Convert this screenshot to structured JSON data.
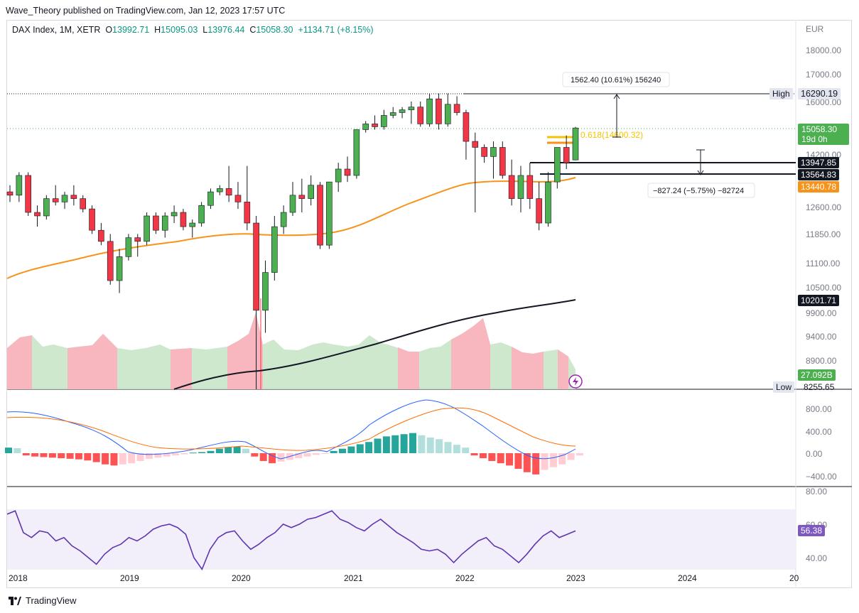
{
  "header": {
    "publisher": "Wave_Theory published on TradingView.com, Jan 12, 2023 17:57 UTC"
  },
  "legend": {
    "symbol": "DAX Index, 1M, XETR",
    "open_label": "O",
    "open": "13992.71",
    "high_label": "H",
    "high": "15095.03",
    "low_label": "L",
    "low": "13976.44",
    "close_label": "C",
    "close": "15058.30",
    "change": "+1134.71 (+8.15%)"
  },
  "price_axis": {
    "currency": "EUR",
    "ticks": [
      "18000.00",
      "17000.00",
      "16000.00",
      "14200.00",
      "12600.00",
      "11850.00",
      "11100.00",
      "10500.00",
      "9900.00",
      "9400.00",
      "8900.00"
    ]
  },
  "labels": {
    "high_label": "High",
    "high_value": "16290.19",
    "low_label": "Low",
    "low_value": "8255.65",
    "last_price": "15058.30",
    "countdown": "19d 0h",
    "level1": "13947.85",
    "level2": "13564.83",
    "ma_value": "13440.78",
    "ma200_value": "10201.71",
    "volume_value": "27.092B",
    "fib_label": "0.618(14600.32)",
    "measure_up": "1562.40 (10.61%) 156240",
    "measure_down": "−827.24 (−5.75%) −82724"
  },
  "macd_axis": {
    "ticks": [
      "800.00",
      "400.00",
      "0.00",
      "−400.00"
    ]
  },
  "rsi_axis": {
    "ticks": [
      "80.00",
      "60.00",
      "40.00"
    ],
    "value": "56.38"
  },
  "time_axis": {
    "ticks": [
      "2018",
      "2019",
      "2020",
      "2021",
      "2022",
      "2023",
      "2024",
      "20"
    ]
  },
  "brand": {
    "name": "TradingView"
  },
  "colors": {
    "up": "#4caf50",
    "down": "#f23645",
    "ma": "#f7931a",
    "ma200": "#131722",
    "macd": "#2962ff",
    "signal": "#ff6d00",
    "rsi": "#7e57c2",
    "accent": "#f7931a"
  },
  "chart_data": {
    "type": "candlestick",
    "price_candles": [
      [
        13000,
        13200,
        12700,
        12900
      ],
      [
        12900,
        13600,
        12700,
        13500
      ],
      [
        13500,
        13600,
        12300,
        12400
      ],
      [
        12400,
        12600,
        12000,
        12300
      ],
      [
        12300,
        12900,
        12200,
        12800
      ],
      [
        12800,
        13200,
        12600,
        12700
      ],
      [
        12700,
        13000,
        12500,
        12900
      ],
      [
        12900,
        13200,
        12600,
        12800
      ],
      [
        12800,
        12900,
        12400,
        12500
      ],
      [
        12500,
        12600,
        11800,
        11900
      ],
      [
        11900,
        12100,
        11500,
        11600
      ],
      [
        11600,
        11800,
        10500,
        10600
      ],
      [
        10600,
        11400,
        10300,
        11200
      ],
      [
        11200,
        11800,
        11100,
        11700
      ],
      [
        11700,
        11800,
        11200,
        11600
      ],
      [
        11600,
        12400,
        11500,
        12300
      ],
      [
        12300,
        12400,
        11800,
        11900
      ],
      [
        11900,
        12400,
        11700,
        12300
      ],
      [
        12300,
        12600,
        12100,
        12400
      ],
      [
        12400,
        12500,
        11900,
        12000
      ],
      [
        12000,
        12200,
        11700,
        12100
      ],
      [
        12100,
        12700,
        12000,
        12600
      ],
      [
        12600,
        13100,
        12500,
        13000
      ],
      [
        13000,
        13200,
        12900,
        13100
      ],
      [
        13100,
        13800,
        12700,
        12900
      ],
      [
        12900,
        13300,
        12500,
        12700
      ],
      [
        12700,
        13800,
        11900,
        12100
      ],
      [
        12100,
        12300,
        8255,
        9900
      ],
      [
        9900,
        11100,
        9400,
        10800
      ],
      [
        10800,
        12300,
        10600,
        12000
      ],
      [
        12000,
        12600,
        11800,
        12400
      ],
      [
        12400,
        13300,
        12300,
        12900
      ],
      [
        12900,
        13400,
        12400,
        12800
      ],
      [
        12800,
        13500,
        12600,
        13200
      ],
      [
        13200,
        13300,
        11400,
        11500
      ],
      [
        11500,
        13300,
        11400,
        13300
      ],
      [
        13300,
        13900,
        13000,
        13700
      ],
      [
        13700,
        14100,
        13300,
        13500
      ],
      [
        13500,
        15000,
        13400,
        15000
      ],
      [
        15000,
        15300,
        14900,
        15200
      ],
      [
        15200,
        15500,
        15000,
        15100
      ],
      [
        15100,
        15700,
        15000,
        15500
      ],
      [
        15500,
        15800,
        15400,
        15600
      ],
      [
        15600,
        15800,
        15400,
        15700
      ],
      [
        15700,
        16000,
        15200,
        15800
      ],
      [
        15800,
        16000,
        15100,
        15200
      ],
      [
        15200,
        16300,
        15100,
        16100
      ],
      [
        16100,
        16300,
        15000,
        15200
      ],
      [
        15200,
        16300,
        15100,
        15900
      ],
      [
        15900,
        16200,
        15500,
        15600
      ],
      [
        15600,
        15700,
        14000,
        14600
      ],
      [
        14600,
        14900,
        12400,
        14400
      ],
      [
        14400,
        14500,
        13900,
        14100
      ],
      [
        14100,
        14600,
        13400,
        14400
      ],
      [
        14400,
        14600,
        13400,
        13500
      ],
      [
        13500,
        14000,
        12600,
        12800
      ],
      [
        12800,
        13800,
        12400,
        13500
      ],
      [
        13500,
        13900,
        12500,
        12800
      ],
      [
        12800,
        13300,
        11900,
        12100
      ],
      [
        12100,
        13600,
        12000,
        13300
      ],
      [
        13300,
        14400,
        13100,
        14400
      ],
      [
        14400,
        14800,
        13700,
        13900
      ],
      [
        13990,
        15095,
        13976,
        15058
      ]
    ],
    "macd_histogram": [
      100,
      90,
      -40,
      -60,
      -70,
      -80,
      -90,
      -100,
      -110,
      -130,
      -160,
      -200,
      -220,
      -200,
      -180,
      -140,
      -100,
      -80,
      -60,
      -40,
      -20,
      10,
      20,
      40,
      80,
      110,
      120,
      80,
      -60,
      -140,
      -180,
      -150,
      -120,
      -90,
      -60,
      -30,
      -10,
      40,
      80,
      120,
      160,
      200,
      260,
      300,
      320,
      340,
      360,
      320,
      280,
      250,
      200,
      150,
      100,
      -40,
      -90,
      -140,
      -180,
      -220,
      -280,
      -340,
      -380,
      -300,
      -250,
      -200,
      -120,
      -40
    ],
    "rsi": [
      66,
      68,
      55,
      52,
      56,
      55,
      50,
      52,
      47,
      44,
      40,
      36,
      42,
      46,
      48,
      52,
      50,
      53,
      57,
      59,
      60,
      58,
      54,
      40,
      33,
      45,
      52,
      55,
      56,
      50,
      45,
      48,
      52,
      55,
      60,
      58,
      60,
      63,
      64,
      66,
      68,
      63,
      61,
      58,
      56,
      60,
      63,
      59,
      55,
      52,
      49,
      45,
      44,
      45,
      42,
      37,
      42,
      46,
      50,
      52,
      47,
      45,
      41,
      37,
      42,
      48,
      53,
      56,
      52,
      54,
      56
    ]
  }
}
